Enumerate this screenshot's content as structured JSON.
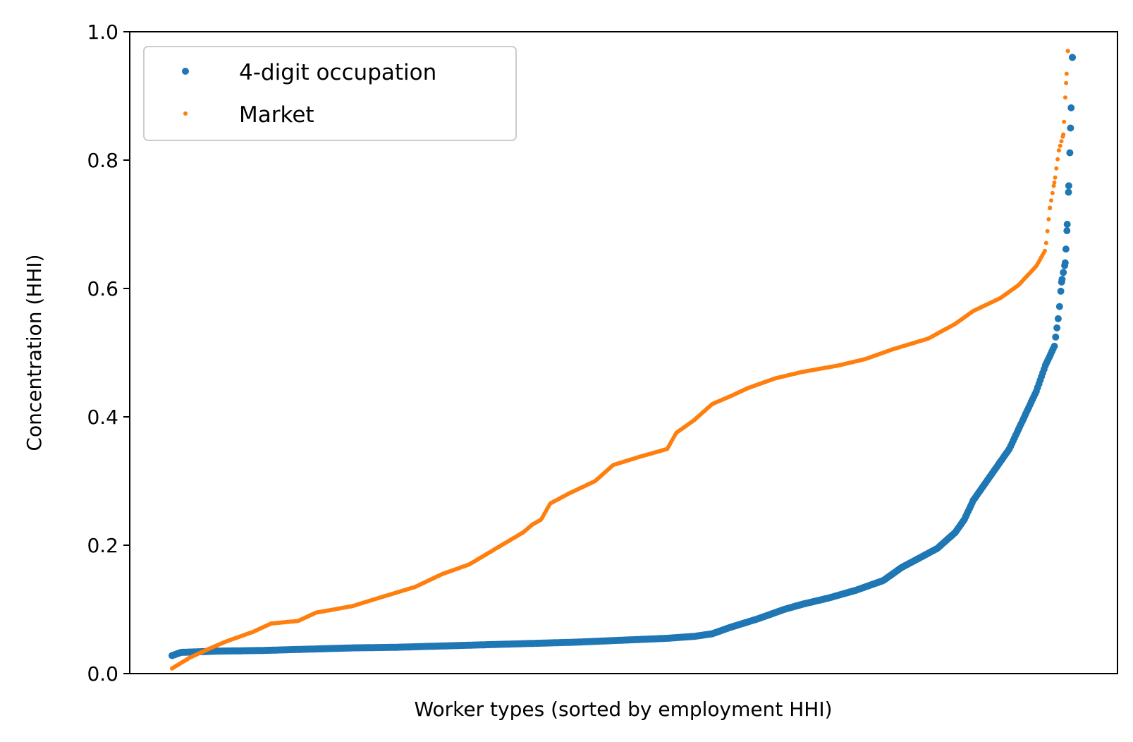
{
  "chart_data": {
    "type": "scatter",
    "xlabel": "Worker types (sorted by employment HHI)",
    "ylabel": "Concentration (HHI)",
    "ylim": [
      0,
      1
    ],
    "yticks": [
      "0.0",
      "0.2",
      "0.4",
      "0.6",
      "0.8",
      "1.0"
    ],
    "x_ticks_shown": false,
    "grid": false,
    "legend_position": "top-left",
    "x_range": [
      0,
      1
    ],
    "series": [
      {
        "name": "4-digit occupation",
        "color": "#1f77b4",
        "curve": [
          [
            0.0,
            0.028
          ],
          [
            0.01,
            0.033
          ],
          [
            0.05,
            0.035
          ],
          [
            0.1,
            0.036
          ],
          [
            0.15,
            0.038
          ],
          [
            0.2,
            0.04
          ],
          [
            0.25,
            0.041
          ],
          [
            0.3,
            0.043
          ],
          [
            0.35,
            0.045
          ],
          [
            0.4,
            0.047
          ],
          [
            0.45,
            0.049
          ],
          [
            0.5,
            0.052
          ],
          [
            0.55,
            0.055
          ],
          [
            0.58,
            0.058
          ],
          [
            0.6,
            0.062
          ],
          [
            0.62,
            0.072
          ],
          [
            0.65,
            0.085
          ],
          [
            0.68,
            0.1
          ],
          [
            0.7,
            0.108
          ],
          [
            0.73,
            0.118
          ],
          [
            0.76,
            0.13
          ],
          [
            0.79,
            0.145
          ],
          [
            0.81,
            0.165
          ],
          [
            0.83,
            0.18
          ],
          [
            0.85,
            0.195
          ],
          [
            0.87,
            0.22
          ],
          [
            0.88,
            0.24
          ],
          [
            0.89,
            0.27
          ],
          [
            0.91,
            0.31
          ],
          [
            0.93,
            0.35
          ],
          [
            0.94,
            0.38
          ],
          [
            0.95,
            0.41
          ],
          [
            0.96,
            0.44
          ],
          [
            0.97,
            0.48
          ],
          [
            0.98,
            0.51
          ],
          [
            0.985,
            0.56
          ],
          [
            0.988,
            0.61
          ],
          [
            0.992,
            0.64
          ],
          [
            0.994,
            0.69
          ],
          [
            0.996,
            0.76
          ],
          [
            0.998,
            0.85
          ],
          [
            1.0,
            0.96
          ]
        ]
      },
      {
        "name": "Market",
        "color": "#ff7f0e",
        "curve": [
          [
            0.0,
            0.008
          ],
          [
            0.02,
            0.025
          ],
          [
            0.04,
            0.038
          ],
          [
            0.06,
            0.05
          ],
          [
            0.09,
            0.065
          ],
          [
            0.11,
            0.078
          ],
          [
            0.14,
            0.082
          ],
          [
            0.16,
            0.095
          ],
          [
            0.2,
            0.105
          ],
          [
            0.23,
            0.118
          ],
          [
            0.27,
            0.135
          ],
          [
            0.3,
            0.155
          ],
          [
            0.33,
            0.17
          ],
          [
            0.36,
            0.195
          ],
          [
            0.39,
            0.22
          ],
          [
            0.4,
            0.232
          ],
          [
            0.41,
            0.24
          ],
          [
            0.42,
            0.265
          ],
          [
            0.44,
            0.28
          ],
          [
            0.47,
            0.3
          ],
          [
            0.49,
            0.325
          ],
          [
            0.52,
            0.338
          ],
          [
            0.55,
            0.35
          ],
          [
            0.56,
            0.375
          ],
          [
            0.58,
            0.395
          ],
          [
            0.6,
            0.42
          ],
          [
            0.62,
            0.432
          ],
          [
            0.64,
            0.445
          ],
          [
            0.67,
            0.46
          ],
          [
            0.7,
            0.47
          ],
          [
            0.74,
            0.48
          ],
          [
            0.77,
            0.49
          ],
          [
            0.8,
            0.505
          ],
          [
            0.84,
            0.522
          ],
          [
            0.87,
            0.545
          ],
          [
            0.89,
            0.565
          ],
          [
            0.92,
            0.585
          ],
          [
            0.94,
            0.605
          ],
          [
            0.96,
            0.635
          ],
          [
            0.97,
            0.66
          ],
          [
            0.975,
            0.725
          ],
          [
            0.98,
            0.765
          ],
          [
            0.985,
            0.815
          ],
          [
            0.99,
            0.84
          ],
          [
            0.993,
            0.92
          ],
          [
            0.995,
            0.97
          ]
        ]
      }
    ]
  }
}
